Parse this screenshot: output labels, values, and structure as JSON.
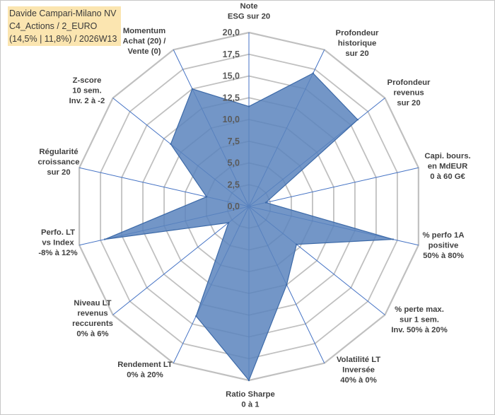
{
  "title": {
    "line1": "Davide Campari-Milano NV",
    "line2": "C4_Actions / 2_EURO",
    "line3": "(14,5% | 11,8%) / 2026W13"
  },
  "colors": {
    "title_bg": "#fbe5b0",
    "grid": "#c0c0c0",
    "axis": "#4472c4",
    "fill": "#5b84bd",
    "stroke": "#3d6aa8"
  },
  "chart_data": {
    "type": "radar",
    "rmin": 0,
    "rmax": 20,
    "tick_step": 2.5,
    "tick_labels": [
      "0,0",
      "2,5",
      "5,0",
      "7,5",
      "10,0",
      "12,5",
      "15,0",
      "17,5",
      "20,0"
    ],
    "grid": true,
    "legend": "none",
    "axes": [
      [
        "Note",
        "ESG sur 20"
      ],
      [
        "Profondeur",
        "historique",
        "sur 20"
      ],
      [
        "Profondeur",
        "revenus",
        "sur 20"
      ],
      [
        "Capi. bours.",
        "en MdEUR",
        "0 à 60 G€"
      ],
      [
        "% perfo 1A",
        "positive",
        "50% à 80%"
      ],
      [
        "% perte max.",
        "sur 1 sem.",
        "Inv. 50% à 20%"
      ],
      [
        "Volatilité LT",
        "Inversée",
        "40% à 0%"
      ],
      [
        "Ratio Sharpe",
        "0 à 1"
      ],
      [
        "Rendement LT",
        "0% à 20%"
      ],
      [
        "Niveau LT",
        "revenus",
        "reccurents",
        "0% à 6%"
      ],
      [
        "Perfo. LT",
        "vs Index",
        "-8% à 12%"
      ],
      [
        "Régularité",
        "croissance",
        "sur 20"
      ],
      [
        "Z-score",
        "10 sem.",
        "Inv. 2 à -2"
      ],
      [
        "Momentum",
        "Achat (20) /",
        "Vente (0)"
      ]
    ],
    "values": [
      11.5,
      17.0,
      16.0,
      2.0,
      17.0,
      7.0,
      10.0,
      20.0,
      14.0,
      3.0,
      17.0,
      5.0,
      11.5,
      15.0
    ]
  }
}
